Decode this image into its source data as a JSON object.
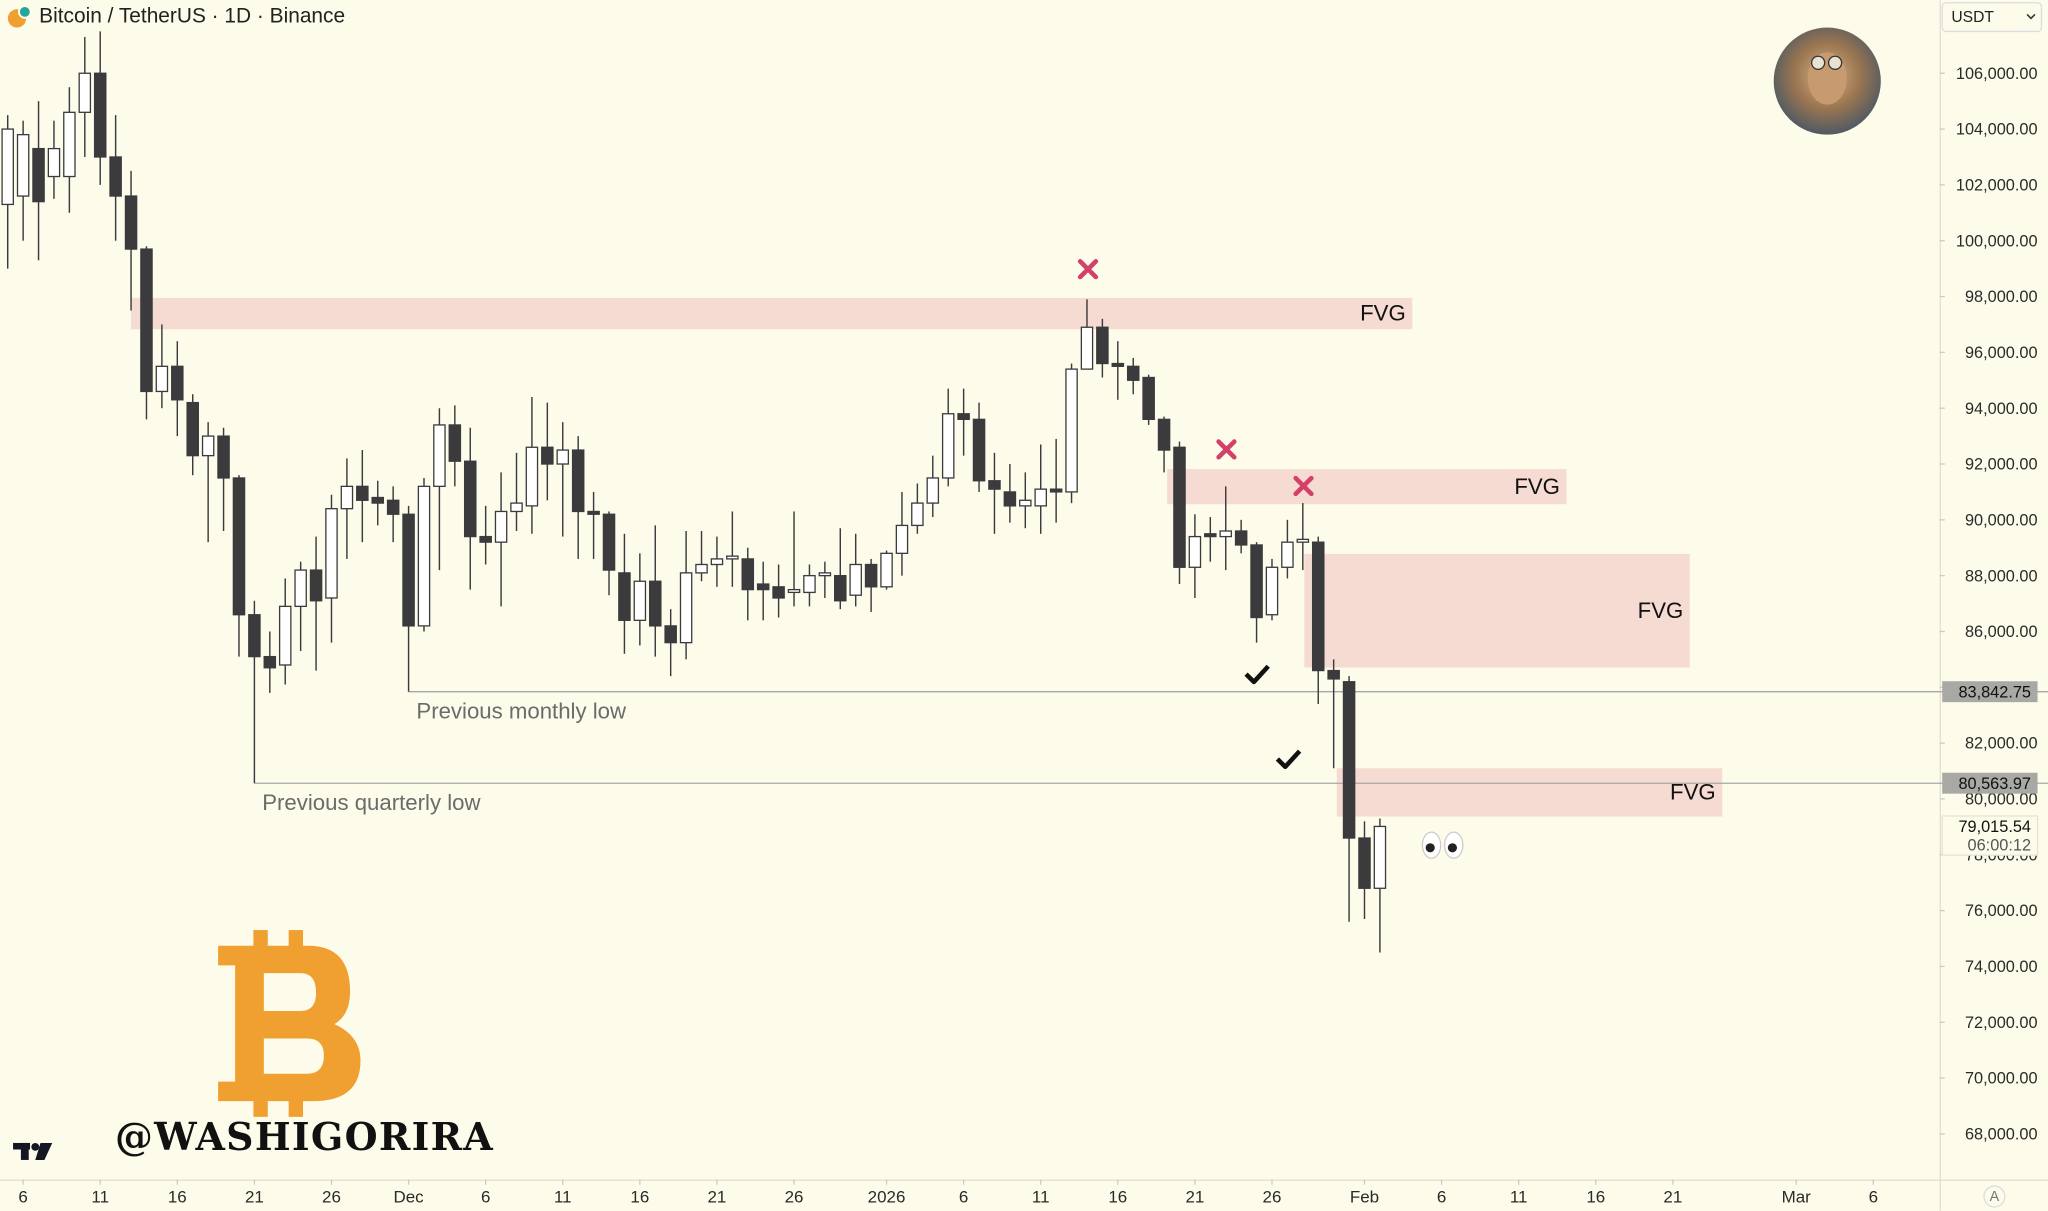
{
  "chart_data": {
    "type": "candlestick",
    "title": "Bitcoin / TetherUS · 1D · Binance",
    "currency": "USDT",
    "scale_button": "A",
    "up_color": "#ffffff",
    "down_color": "#3b3b3d",
    "wick_color": "#3b3b3d",
    "open": [
      101300,
      101600,
      103300,
      102300,
      102300,
      104600,
      106000,
      103000,
      101600,
      99700,
      94600,
      95500,
      94200,
      92300,
      93000,
      91500,
      86600,
      85100,
      84800,
      86900,
      88200,
      87200,
      90400,
      91200,
      90800,
      90700,
      90200,
      86200,
      91200,
      93400,
      92100,
      89400,
      89200,
      90300,
      90500,
      92600,
      92000,
      92500,
      90300,
      90200,
      88100,
      86400,
      87800,
      86200,
      85600,
      88100,
      88400,
      88600,
      88600,
      87700,
      87600,
      87400,
      87400,
      88000,
      88000,
      87300,
      88400,
      87600,
      88800,
      89800,
      90600,
      91500,
      93800,
      93600,
      91400,
      91000,
      90500,
      90500,
      91100,
      91000,
      95400,
      96900,
      95600,
      95500,
      95100,
      93600,
      92600,
      88300,
      89500,
      89400,
      89600,
      89100,
      86600,
      88300,
      89200,
      89200,
      84600,
      84200,
      78600,
      76800
    ],
    "high": [
      104500,
      104300,
      105000,
      104300,
      105500,
      107300,
      107500,
      104500,
      102500,
      99800,
      97000,
      96400,
      94500,
      93500,
      93300,
      91600,
      87100,
      86000,
      87900,
      88500,
      89400,
      90900,
      92200,
      92500,
      91400,
      91200,
      90500,
      91500,
      94000,
      94100,
      93300,
      90500,
      91700,
      92400,
      94400,
      94200,
      93500,
      93000,
      91000,
      90300,
      89500,
      88800,
      89800,
      86800,
      89600,
      89600,
      89400,
      90300,
      89000,
      88500,
      88400,
      90300,
      88400,
      88500,
      89700,
      89500,
      88600,
      88900,
      91000,
      91300,
      92300,
      94700,
      94700,
      94200,
      92400,
      92000,
      91700,
      92700,
      92900,
      95600,
      97900,
      97200,
      96400,
      95800,
      95200,
      93700,
      92800,
      90200,
      90100,
      91200,
      90000,
      89200,
      88600,
      90000,
      90600,
      89400,
      85000,
      84400,
      79200,
      79300
    ],
    "low": [
      99000,
      100000,
      99300,
      101500,
      101000,
      103000,
      102000,
      100000,
      97500,
      93600,
      94000,
      93000,
      91600,
      89200,
      89600,
      85100,
      80563.97,
      83800,
      84100,
      85300,
      84600,
      85600,
      88600,
      89200,
      89800,
      89200,
      83842.75,
      86000,
      88200,
      91200,
      87500,
      88400,
      86900,
      89600,
      89500,
      90700,
      89400,
      88600,
      88600,
      87300,
      85200,
      85500,
      85100,
      84400,
      85000,
      87800,
      87600,
      87600,
      86400,
      86400,
      86500,
      86900,
      86900,
      87200,
      86800,
      86900,
      86700,
      87500,
      88000,
      89500,
      90100,
      91200,
      92300,
      91000,
      89500,
      89900,
      89700,
      89500,
      89900,
      90600,
      95400,
      95100,
      94300,
      94500,
      93400,
      91700,
      87700,
      87200,
      88500,
      88200,
      88800,
      85600,
      86400,
      87900,
      88200,
      83400,
      81100,
      75600,
      75700,
      74500
    ],
    "close": [
      104000,
      103800,
      101400,
      103300,
      104600,
      106000,
      103000,
      101600,
      99700,
      94600,
      95500,
      94300,
      92300,
      93000,
      91500,
      86600,
      85100,
      84700,
      86900,
      88200,
      87100,
      90400,
      91200,
      90700,
      90600,
      90200,
      86200,
      91200,
      93400,
      92100,
      89400,
      89200,
      90300,
      90600,
      92600,
      92000,
      92500,
      90300,
      90200,
      88200,
      86400,
      87800,
      86200,
      85600,
      88100,
      88400,
      88600,
      88700,
      87500,
      87500,
      87200,
      87500,
      88000,
      88100,
      87100,
      88400,
      87600,
      88800,
      89800,
      90600,
      91500,
      93800,
      93600,
      91400,
      91100,
      90500,
      90700,
      91100,
      91000,
      95400,
      96900,
      95600,
      95500,
      95000,
      93600,
      92500,
      88300,
      89400,
      89400,
      89600,
      89100,
      86500,
      88300,
      89200,
      89300,
      84600,
      84300,
      78600,
      76800,
      79015.54
    ],
    "xlim": [
      -0.5,
      125.3
    ],
    "xticks": [
      {
        "value": 1,
        "label": "6"
      },
      {
        "value": 6,
        "label": "11"
      },
      {
        "value": 11,
        "label": "16"
      },
      {
        "value": 16,
        "label": "21"
      },
      {
        "value": 21,
        "label": "26"
      },
      {
        "value": 26,
        "label": "Dec"
      },
      {
        "value": 31,
        "label": "6"
      },
      {
        "value": 36,
        "label": "11"
      },
      {
        "value": 41,
        "label": "16"
      },
      {
        "value": 46,
        "label": "21"
      },
      {
        "value": 51,
        "label": "26"
      },
      {
        "value": 57,
        "label": "2026"
      },
      {
        "value": 62,
        "label": "6"
      },
      {
        "value": 67,
        "label": "11"
      },
      {
        "value": 72,
        "label": "16"
      },
      {
        "value": 77,
        "label": "21"
      },
      {
        "value": 82,
        "label": "26"
      },
      {
        "value": 88,
        "label": "Feb"
      },
      {
        "value": 93,
        "label": "6"
      },
      {
        "value": 98,
        "label": "11"
      },
      {
        "value": 103,
        "label": "16"
      },
      {
        "value": 108,
        "label": "21"
      },
      {
        "value": 116,
        "label": "Mar"
      },
      {
        "value": 121,
        "label": "6"
      }
    ],
    "ylim": [
      66365,
      108620
    ],
    "yticks": [
      {
        "value": 68000,
        "label": "68,000.00"
      },
      {
        "value": 70000,
        "label": "70,000.00"
      },
      {
        "value": 72000,
        "label": "72,000.00"
      },
      {
        "value": 74000,
        "label": "74,000.00"
      },
      {
        "value": 76000,
        "label": "76,000.00"
      },
      {
        "value": 78000,
        "label": "78,000.00"
      },
      {
        "value": 80000,
        "label": "80,000.00"
      },
      {
        "value": 82000,
        "label": "82,000.00"
      },
      {
        "value": 84000,
        "label": "84,000.00"
      },
      {
        "value": 86000,
        "label": "86,000.00"
      },
      {
        "value": 88000,
        "label": "88,000.00"
      },
      {
        "value": 90000,
        "label": "90,000.00"
      },
      {
        "value": 92000,
        "label": "92,000.00"
      },
      {
        "value": 94000,
        "label": "94,000.00"
      },
      {
        "value": 96000,
        "label": "96,000.00"
      },
      {
        "value": 98000,
        "label": "98,000.00"
      },
      {
        "value": 100000,
        "label": "100,000.00"
      },
      {
        "value": 102000,
        "label": "102,000.00"
      },
      {
        "value": 104000,
        "label": "104,000.00"
      },
      {
        "value": 106000,
        "label": "106,000.00"
      }
    ],
    "zones": [
      {
        "label": "FVG",
        "x": [
          8,
          91.1
        ],
        "y": [
          96830,
          97950
        ]
      },
      {
        "label": "FVG",
        "x": [
          75.2,
          101.1
        ],
        "y": [
          90560,
          91820
        ]
      },
      {
        "label": "FVG",
        "x": [
          84.1,
          109.1
        ],
        "y": [
          84710,
          88780
        ]
      },
      {
        "label": "FVG",
        "x": [
          86.2,
          111.2
        ],
        "y": [
          79370,
          81100
        ]
      }
    ],
    "levels": [
      {
        "label": "Previous monthly low",
        "value": 83842.75,
        "value_label": "83,842.75",
        "start": 26
      },
      {
        "label": "Previous quarterly low",
        "value": 80563.97,
        "value_label": "80,563.97",
        "start": 16
      }
    ],
    "last_price": {
      "value": 79015.54,
      "label": "79,015.54",
      "countdown": "06:00:12"
    },
    "watermark": "@WASHIGORIRA"
  }
}
